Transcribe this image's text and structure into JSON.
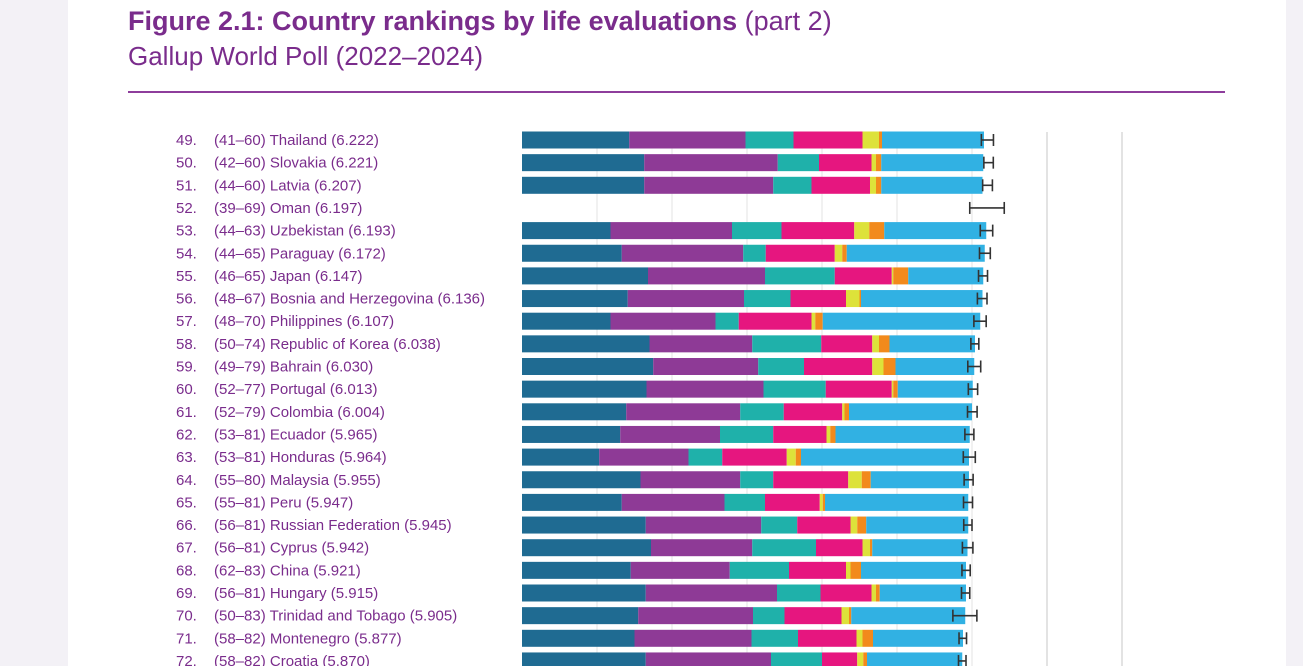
{
  "header": {
    "title": "Figure 2.1: Country rankings by life evaluations",
    "title_suffix": "(part 2)",
    "subtitle": "Gallup World Poll (2022–2024)"
  },
  "colors": {
    "text": "#7a2c8c",
    "rule": "#8e3d9c",
    "segments": [
      "#1f6b92",
      "#8e3a96",
      "#1fb1aa",
      "#e6167f",
      "#dde23a",
      "#f28a1c",
      "#31b1e3"
    ],
    "whisker": "#333333",
    "gridline": "#e3e3e3"
  },
  "chart_data": {
    "type": "bar",
    "orientation": "horizontal",
    "stacked": true,
    "grid": true,
    "x_max": 8,
    "series_count": 7,
    "rows": [
      {
        "rank": "49.",
        "range": "(41–60)",
        "country": "Thailand",
        "score": "(6.222)",
        "value": 6.222,
        "segments": [
          1.43,
          1.55,
          0.64,
          0.92,
          0.22,
          0.04,
          1.36
        ],
        "ci": [
          6.125,
          6.286
        ]
      },
      {
        "rank": "50.",
        "range": "(42–60)",
        "country": "Slovakia",
        "score": "(6.221)",
        "value": 6.221,
        "segments": [
          1.63,
          1.78,
          0.55,
          0.7,
          0.06,
          0.07,
          1.36
        ],
        "ci": [
          6.158,
          6.284
        ]
      },
      {
        "rank": "51.",
        "range": "(44–60)",
        "country": "Latvia",
        "score": "(6.207)",
        "value": 6.207,
        "segments": [
          1.63,
          1.72,
          0.51,
          0.78,
          0.08,
          0.07,
          1.35
        ],
        "ci": [
          6.142,
          6.272
        ]
      },
      {
        "rank": "52.",
        "range": "(39–69)",
        "country": "Oman",
        "score": "(6.197)",
        "value": 6.197,
        "segments": [],
        "ci": [
          5.97,
          6.43
        ]
      },
      {
        "rank": "53.",
        "range": "(44–63)",
        "country": "Uzbekistan",
        "score": "(6.193)",
        "value": 6.193,
        "segments": [
          1.18,
          1.62,
          0.66,
          0.97,
          0.2,
          0.2,
          1.36
        ],
        "ci": [
          6.11,
          6.276
        ]
      },
      {
        "rank": "54.",
        "range": "(44–65)",
        "country": "Paraguay",
        "score": "(6.172)",
        "value": 6.172,
        "segments": [
          1.33,
          1.62,
          0.3,
          0.92,
          0.1,
          0.06,
          1.84
        ],
        "ci": [
          6.1,
          6.244
        ]
      },
      {
        "rank": "55.",
        "range": "(46–65)",
        "country": "Japan",
        "score": "(6.147)",
        "value": 6.147,
        "segments": [
          1.68,
          1.56,
          0.93,
          0.76,
          0.02,
          0.2,
          1.0
        ],
        "ci": [
          6.087,
          6.207
        ]
      },
      {
        "rank": "56.",
        "range": "(48–67)",
        "country": "Bosnia and Herzegovina",
        "score": "(6.136)",
        "value": 6.136,
        "segments": [
          1.41,
          1.55,
          0.62,
          0.74,
          0.18,
          0.02,
          1.62
        ],
        "ci": [
          6.072,
          6.2
        ]
      },
      {
        "rank": "57.",
        "range": "(48–70)",
        "country": "Philippines",
        "score": "(6.107)",
        "value": 6.107,
        "segments": [
          1.18,
          1.4,
          0.31,
          0.97,
          0.05,
          0.1,
          2.1
        ],
        "ci": [
          6.025,
          6.189
        ]
      },
      {
        "rank": "58.",
        "range": "(50–74)",
        "country": "Republic of Korea",
        "score": "(6.038)",
        "value": 6.038,
        "segments": [
          1.7,
          1.37,
          0.92,
          0.68,
          0.09,
          0.14,
          1.14
        ],
        "ci": [
          5.985,
          6.091
        ]
      },
      {
        "rank": "59.",
        "range": "(49–79)",
        "country": "Bahrain",
        "score": "(6.030)",
        "value": 6.03,
        "segments": [
          1.75,
          1.4,
          0.61,
          0.91,
          0.15,
          0.16,
          1.05
        ],
        "ci": [
          5.944,
          6.116
        ]
      },
      {
        "rank": "60.",
        "range": "(52–77)",
        "country": "Portugal",
        "score": "(6.013)",
        "value": 6.013,
        "segments": [
          1.66,
          1.56,
          0.83,
          0.88,
          0.02,
          0.06,
          1.0
        ],
        "ci": [
          5.951,
          6.075
        ]
      },
      {
        "rank": "61.",
        "range": "(52–79)",
        "country": "Colombia",
        "score": "(6.004)",
        "value": 6.004,
        "segments": [
          1.39,
          1.52,
          0.58,
          0.78,
          0.03,
          0.06,
          1.64
        ],
        "ci": [
          5.94,
          6.068
        ]
      },
      {
        "rank": "62.",
        "range": "(53–81)",
        "country": "Ecuador",
        "score": "(5.965)",
        "value": 5.965,
        "segments": [
          1.31,
          1.33,
          0.71,
          0.71,
          0.05,
          0.07,
          1.79
        ],
        "ci": [
          5.905,
          6.025
        ]
      },
      {
        "rank": "63.",
        "range": "(53–81)",
        "country": "Honduras",
        "score": "(5.964)",
        "value": 5.964,
        "segments": [
          1.03,
          1.19,
          0.45,
          0.86,
          0.12,
          0.07,
          2.24
        ],
        "ci": [
          5.884,
          6.044
        ]
      },
      {
        "rank": "64.",
        "range": "(55–80)",
        "country": "Malaysia",
        "score": "(5.955)",
        "value": 5.955,
        "segments": [
          1.58,
          1.33,
          0.44,
          1.0,
          0.18,
          0.12,
          1.31
        ],
        "ci": [
          5.895,
          6.015
        ]
      },
      {
        "rank": "65.",
        "range": "(55–81)",
        "country": "Peru",
        "score": "(5.947)",
        "value": 5.947,
        "segments": [
          1.33,
          1.37,
          0.54,
          0.73,
          0.04,
          0.03,
          1.91
        ],
        "ci": [
          5.887,
          6.007
        ]
      },
      {
        "rank": "66.",
        "range": "(56–81)",
        "country": "Russian Federation",
        "score": "(5.945)",
        "value": 5.945,
        "segments": [
          1.65,
          1.54,
          0.48,
          0.71,
          0.09,
          0.12,
          1.36
        ],
        "ci": [
          5.89,
          6.0
        ]
      },
      {
        "rank": "67.",
        "range": "(56–81)",
        "country": "Cyprus",
        "score": "(5.942)",
        "value": 5.942,
        "segments": [
          1.72,
          1.35,
          0.85,
          0.62,
          0.1,
          0.03,
          1.27
        ],
        "ci": [
          5.872,
          6.012
        ]
      },
      {
        "rank": "68.",
        "range": "(62–83)",
        "country": "China",
        "score": "(5.921)",
        "value": 5.921,
        "segments": [
          1.45,
          1.32,
          0.79,
          0.76,
          0.06,
          0.14,
          1.4
        ],
        "ci": [
          5.866,
          5.976
        ]
      },
      {
        "rank": "69.",
        "range": "(56–81)",
        "country": "Hungary",
        "score": "(5.915)",
        "value": 5.915,
        "segments": [
          1.65,
          1.75,
          0.58,
          0.68,
          0.06,
          0.05,
          1.15
        ],
        "ci": [
          5.86,
          5.97
        ]
      },
      {
        "rank": "70.",
        "range": "(50–83)",
        "country": "Trinidad and Tobago",
        "score": "(5.905)",
        "value": 5.905,
        "segments": [
          1.55,
          1.53,
          0.42,
          0.76,
          0.1,
          0.03,
          1.52
        ],
        "ci": [
          5.745,
          6.065
        ]
      },
      {
        "rank": "71.",
        "range": "(58–82)",
        "country": "Montenegro",
        "score": "(5.877)",
        "value": 5.877,
        "segments": [
          1.5,
          1.56,
          0.62,
          0.78,
          0.08,
          0.14,
          1.2
        ],
        "ci": [
          5.827,
          5.927
        ]
      },
      {
        "rank": "72.",
        "range": "(58–82)",
        "country": "Croatia",
        "score": "(5.870)",
        "value": 5.87,
        "segments": [
          1.65,
          1.67,
          0.68,
          0.47,
          0.08,
          0.05,
          1.27
        ],
        "ci": [
          5.82,
          5.92
        ]
      }
    ]
  }
}
